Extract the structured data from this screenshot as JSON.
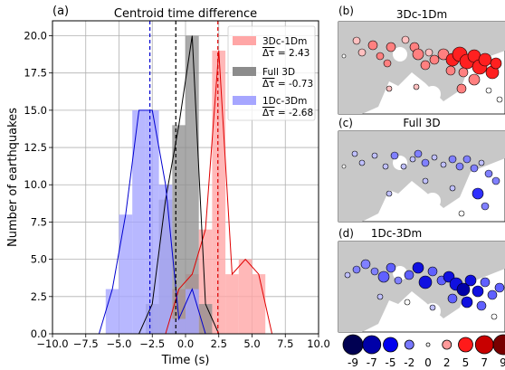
{
  "panel_labels": {
    "a": "(a)",
    "b": "(b)",
    "c": "(c)",
    "d": "(d)"
  },
  "map_titles": {
    "b": "3Dc-1Dm",
    "c": "Full 3D",
    "d": "1Dc-3Dm"
  },
  "colorbar": {
    "ticks": [
      "-9",
      "-7",
      "-5",
      "-2",
      "0",
      "2",
      "5",
      "7",
      "9"
    ],
    "colors": [
      "#000052",
      "#0000a8",
      "#0000ee",
      "#7878ff",
      "#ffffff",
      "#ff9a9a",
      "#ff1a1a",
      "#c80000",
      "#780000"
    ]
  },
  "chart_data": {
    "type": "bar",
    "title": "Centroid time difference",
    "xlabel": "Time (s)",
    "ylabel": "Number of earthquakes",
    "xlim": [
      -10,
      10
    ],
    "ylim": [
      0,
      21
    ],
    "x_ticks": [
      "−10.0",
      "−7.5",
      "−5.0",
      "−2.5",
      "0.0",
      "2.5",
      "5.0",
      "7.5",
      "10.0"
    ],
    "y_ticks": [
      "0.0",
      "2.5",
      "5.0",
      "7.5",
      "10.0",
      "12.5",
      "15.0",
      "17.5",
      "20.0"
    ],
    "grid": true,
    "legend_position": "upper-right",
    "bin_width": 1.0,
    "series": [
      {
        "name": "3Dc-1Dm",
        "stat": "Δτ = 2.43",
        "mean": 2.43,
        "fill": "#ffa6a6",
        "line": "#e00000",
        "bin_centers": [
          -0.5,
          0.5,
          1.5,
          2.5,
          3.5,
          4.5,
          5.5
        ],
        "counts": [
          3,
          4,
          7,
          19,
          4,
          5,
          4
        ]
      },
      {
        "name": "Full 3D",
        "stat": "Δτ = -0.73",
        "mean": -0.73,
        "fill": "#8c8c8c",
        "line": "#000000",
        "bin_centers": [
          -2.5,
          -1.5,
          -0.5,
          0.5,
          1.5
        ],
        "counts": [
          2,
          9,
          14,
          20,
          2
        ]
      },
      {
        "name": "1Dc-3Dm",
        "stat": "Δτ = -2.68",
        "mean": -2.68,
        "fill": "#a6a6ff",
        "line": "#0000d0",
        "bin_centers": [
          -5.5,
          -4.5,
          -3.5,
          -2.5,
          -1.5,
          -0.5,
          0.5
        ],
        "counts": [
          3,
          8,
          15,
          15,
          10,
          1,
          3
        ]
      }
    ]
  }
}
